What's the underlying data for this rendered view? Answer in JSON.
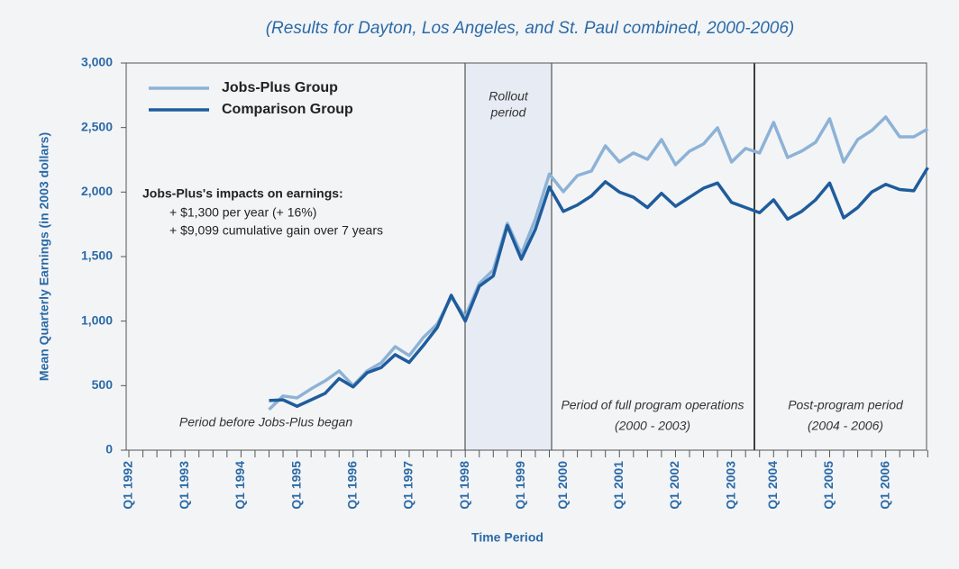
{
  "chart_data": {
    "type": "line",
    "title": "(Results for Dayton, Los Angeles, and St. Paul combined, 2000-2006)",
    "y_label": "Mean Quarterly Earnings (in 2003 dollars)",
    "x_label": "Time Period",
    "categories": [
      "Q1 1992",
      null,
      null,
      null,
      "Q1 1993",
      null,
      null,
      null,
      "Q1 1994",
      null,
      null,
      null,
      "Q1 1995",
      null,
      null,
      null,
      "Q1 1996",
      null,
      null,
      null,
      "Q1 1997",
      null,
      null,
      null,
      "Q1 1998",
      null,
      null,
      null,
      "Q1 1999",
      null,
      null,
      "Q1 2000",
      null,
      null,
      null,
      "Q1 2001",
      null,
      null,
      null,
      "Q1 2002",
      null,
      null,
      null,
      "Q1 2003",
      null,
      null,
      "Q1 2004",
      null,
      null,
      null,
      "Q1 2005",
      null,
      null,
      null,
      "Q1 2006",
      null,
      null,
      null
    ],
    "series": [
      {
        "name": "Jobs-Plus Group",
        "color": "#8db2d6",
        "values": [
          null,
          null,
          null,
          null,
          null,
          null,
          null,
          null,
          null,
          null,
          315,
          420,
          405,
          475,
          537,
          614,
          500,
          614,
          677,
          802,
          733,
          872,
          977,
          1186,
          1033,
          1291,
          1396,
          1758,
          1520,
          1790,
          2140,
          2003,
          2128,
          2163,
          2358,
          2233,
          2303,
          2254,
          2407,
          2212,
          2317,
          2373,
          2498,
          2233,
          2338,
          2303,
          2540,
          2268,
          2317,
          2386,
          2568,
          2233,
          2407,
          2477,
          2582,
          2428,
          2428,
          2490
        ]
      },
      {
        "name": "Comparison Group",
        "color": "#1f5c9c",
        "values": [
          null,
          null,
          null,
          null,
          null,
          null,
          null,
          null,
          null,
          null,
          385,
          390,
          340,
          390,
          440,
          555,
          490,
          600,
          640,
          740,
          680,
          810,
          950,
          1200,
          1000,
          1270,
          1350,
          1740,
          1480,
          1710,
          2040,
          1850,
          1900,
          1970,
          2080,
          2000,
          1960,
          1880,
          1990,
          1890,
          1960,
          2030,
          2070,
          1920,
          1880,
          1840,
          1940,
          1790,
          1850,
          1940,
          2070,
          1800,
          1880,
          2000,
          2060,
          2020,
          2010,
          2190
        ]
      }
    ],
    "ylim": [
      0,
      3000
    ],
    "yticks": [
      0,
      500,
      {
        "value": 1000,
        "label": "1,000"
      },
      {
        "value": 1500,
        "label": "1,500"
      },
      {
        "value": 2000,
        "label": "2,000"
      },
      {
        "value": 2500,
        "label": "2,500"
      },
      {
        "value": 3000,
        "label": "3,000"
      }
    ],
    "legend": "upper left",
    "annotations": {
      "rollout": [
        "Rollout",
        "period"
      ],
      "before": "Period before Jobs-Plus began",
      "full": [
        "Period of full program operations",
        "(2000 - 2003)"
      ],
      "post": [
        "Post-program period",
        "(2004 - 2006)"
      ],
      "impacts": [
        "Jobs-Plus's impacts on earnings:",
        "+ $1,300 per year (+ 16%)",
        "+ $9,099 cumulative gain over 7 years"
      ]
    }
  }
}
